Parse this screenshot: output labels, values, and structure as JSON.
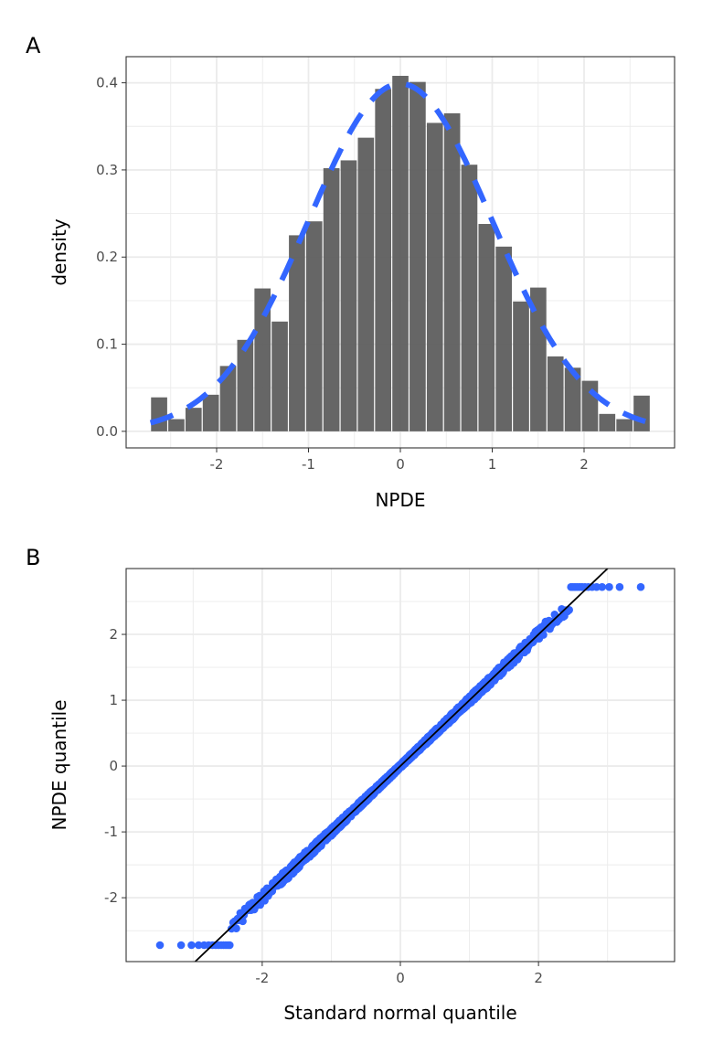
{
  "colors": {
    "accent": "#3366FF",
    "bar": "#595959",
    "grid": "#ebebeb"
  },
  "chart_data": [
    {
      "panel_label": "A",
      "type": "bar",
      "title": "",
      "xlabel": "NPDE",
      "ylabel": "density",
      "xlim": [
        -2.985,
        2.985
      ],
      "ylim": [
        -0.019,
        0.43
      ],
      "xticks": [
        -2,
        -1,
        0,
        1,
        2
      ],
      "xtick_labels": [
        "-2",
        "-1",
        "0",
        "1",
        "2"
      ],
      "yticks": [
        0,
        0.1,
        0.2,
        0.3,
        0.4
      ],
      "ytick_labels": [
        "0.0",
        "0.1",
        "0.2",
        "0.3",
        "0.4"
      ],
      "grid": true,
      "bin_width": 0.1876,
      "bin_centers_start": -2.626,
      "values": [
        0.039,
        0.014,
        0.027,
        0.042,
        0.075,
        0.105,
        0.164,
        0.126,
        0.225,
        0.241,
        0.302,
        0.311,
        0.337,
        0.393,
        0.408,
        0.401,
        0.354,
        0.365,
        0.306,
        0.238,
        0.212,
        0.149,
        0.165,
        0.086,
        0.073,
        0.058,
        0.02,
        0.014,
        0.041
      ],
      "overlay": {
        "type": "line",
        "style": "dashed",
        "name": "standard normal density",
        "x_range": [
          -2.72,
          2.72
        ],
        "mean": 0,
        "sd": 1
      }
    },
    {
      "panel_label": "B",
      "type": "scatter",
      "title": "",
      "xlabel": "Standard normal quantile",
      "ylabel": "NPDE quantile",
      "xlim": [
        -3.97,
        3.97
      ],
      "ylim": [
        -2.97,
        3.0
      ],
      "xticks": [
        -2,
        0,
        2
      ],
      "xtick_labels": [
        "-2",
        "0",
        "2"
      ],
      "yticks": [
        -2,
        -1,
        0,
        1,
        2
      ],
      "ytick_labels": [
        "-2",
        "-1",
        "0",
        "1",
        "2"
      ],
      "grid": true,
      "n_points": 2000,
      "npde_clamp": 2.72,
      "clamp_from_quantile": 2.45,
      "reference_line": {
        "slope": 1,
        "intercept": 0
      }
    }
  ]
}
